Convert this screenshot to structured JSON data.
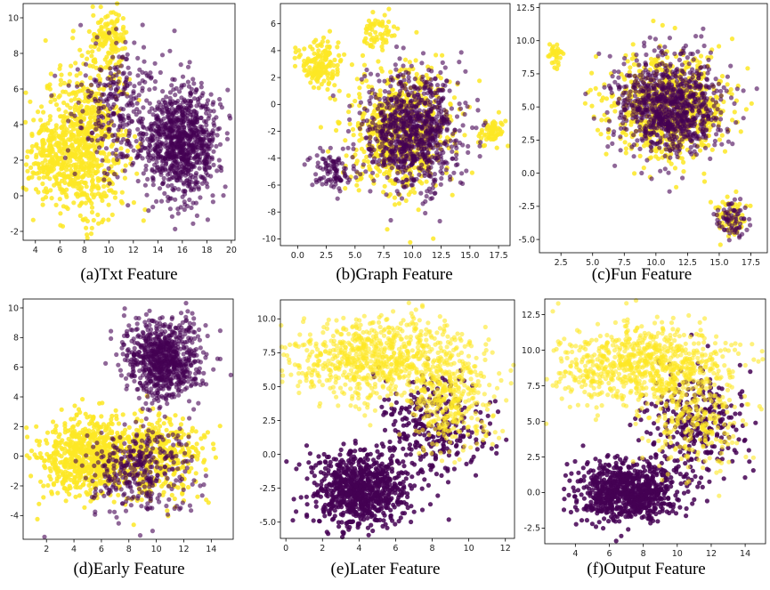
{
  "colors": {
    "class_a": "#fde725",
    "class_b": "#440154"
  },
  "chart_data": [
    {
      "type": "scatter",
      "caption": "(a)Txt Feature",
      "xticks": [
        4,
        6,
        8,
        10,
        12,
        14,
        16,
        18,
        20
      ],
      "yticks": [
        -2,
        0,
        2,
        4,
        6,
        8,
        10
      ],
      "xlim": [
        3,
        20.3
      ],
      "ylim": [
        -2.5,
        10.8
      ],
      "series": [
        {
          "color": "#fde725",
          "clusters": [
            {
              "cx": 8,
              "cy": 3,
              "sx": 2.2,
              "sy": 2.8,
              "n": 700
            },
            {
              "cx": 10,
              "cy": 8.5,
              "sx": 1.0,
              "sy": 1.3,
              "n": 150
            },
            {
              "cx": 5,
              "cy": 2,
              "sx": 1.2,
              "sy": 1.5,
              "n": 150
            }
          ]
        },
        {
          "color": "#440154",
          "clusters": [
            {
              "cx": 16,
              "cy": 3,
              "sx": 2.0,
              "sy": 2.0,
              "n": 900
            },
            {
              "cx": 11,
              "cy": 5,
              "sx": 2.5,
              "sy": 2.5,
              "n": 300
            }
          ]
        }
      ]
    },
    {
      "type": "scatter",
      "caption": "(b)Graph Feature",
      "xticks": [
        0.0,
        2.5,
        5.0,
        7.5,
        10.0,
        12.5,
        15.0,
        17.5
      ],
      "yticks": [
        -10,
        -8,
        -6,
        -4,
        -2,
        0,
        2,
        4,
        6
      ],
      "xlim": [
        -1.5,
        18.5
      ],
      "ylim": [
        -10.5,
        7.5
      ],
      "series": [
        {
          "color": "#fde725",
          "clusters": [
            {
              "cx": 9,
              "cy": -2,
              "sx": 3.0,
              "sy": 3.0,
              "n": 700
            },
            {
              "cx": 2,
              "cy": 3,
              "sx": 1.2,
              "sy": 1.2,
              "n": 150
            },
            {
              "cx": 7,
              "cy": 5.5,
              "sx": 1.0,
              "sy": 0.8,
              "n": 60
            },
            {
              "cx": 17,
              "cy": -2,
              "sx": 0.7,
              "sy": 0.6,
              "n": 60
            }
          ]
        },
        {
          "color": "#440154",
          "clusters": [
            {
              "cx": 10,
              "cy": -2,
              "sx": 2.8,
              "sy": 3.0,
              "n": 900
            },
            {
              "cx": 3,
              "cy": -5,
              "sx": 1.2,
              "sy": 1.0,
              "n": 100
            }
          ]
        }
      ]
    },
    {
      "type": "scatter",
      "caption": "(c)Fun Feature",
      "xticks": [
        2.5,
        5.0,
        7.5,
        10.0,
        12.5,
        15.0,
        17.5
      ],
      "yticks": [
        -5.0,
        -2.5,
        0.0,
        2.5,
        5.0,
        7.5,
        10.0,
        12.5
      ],
      "xlim": [
        0.8,
        18.8
      ],
      "ylim": [
        -6,
        12.8
      ],
      "series": [
        {
          "color": "#fde725",
          "clusters": [
            {
              "cx": 11,
              "cy": 5,
              "sx": 3.0,
              "sy": 2.5,
              "n": 800
            },
            {
              "cx": 16,
              "cy": -3.5,
              "sx": 0.8,
              "sy": 1.0,
              "n": 80
            },
            {
              "cx": 2,
              "cy": 9,
              "sx": 0.4,
              "sy": 0.6,
              "n": 30
            }
          ]
        },
        {
          "color": "#440154",
          "clusters": [
            {
              "cx": 11,
              "cy": 5,
              "sx": 2.8,
              "sy": 2.5,
              "n": 900
            },
            {
              "cx": 16,
              "cy": -3.5,
              "sx": 0.8,
              "sy": 1.0,
              "n": 70
            }
          ]
        }
      ]
    },
    {
      "type": "scatter",
      "caption": "(d)Early Feature",
      "xticks": [
        2,
        4,
        6,
        8,
        10,
        12,
        14
      ],
      "yticks": [
        -4,
        -2,
        0,
        2,
        4,
        6,
        8,
        10
      ],
      "xlim": [
        0.3,
        15.6
      ],
      "ylim": [
        -5.6,
        10.6
      ],
      "series": [
        {
          "color": "#fde725",
          "clusters": [
            {
              "cx": 5,
              "cy": 0,
              "sx": 2.5,
              "sy": 1.8,
              "n": 700
            },
            {
              "cx": 10,
              "cy": 0,
              "sx": 2.5,
              "sy": 2.0,
              "n": 400
            }
          ]
        },
        {
          "color": "#440154",
          "clusters": [
            {
              "cx": 10.5,
              "cy": 6.5,
              "sx": 1.8,
              "sy": 1.8,
              "n": 800
            },
            {
              "cx": 9,
              "cy": -1,
              "sx": 2.5,
              "sy": 2.0,
              "n": 350
            }
          ]
        }
      ]
    },
    {
      "type": "scatter",
      "caption": "(e)Later Feature",
      "xticks": [
        0,
        2,
        4,
        6,
        8,
        10,
        12
      ],
      "yticks": [
        -5.0,
        -2.5,
        0.0,
        2.5,
        5.0,
        7.5,
        10.0
      ],
      "xlim": [
        -0.3,
        12.5
      ],
      "ylim": [
        -6.2,
        11.4
      ],
      "series": [
        {
          "color": "#440154",
          "clusters": [
            {
              "cx": 4,
              "cy": -2.5,
              "sx": 1.7,
              "sy": 1.8,
              "n": 800
            },
            {
              "cx": 8,
              "cy": 2,
              "sx": 2.0,
              "sy": 2.5,
              "n": 300
            }
          ]
        },
        {
          "color": "#fde725",
          "clusters": [
            {
              "cx": 5,
              "cy": 7,
              "sx": 3.5,
              "sy": 2.0,
              "n": 800
            },
            {
              "cx": 9,
              "cy": 4,
              "sx": 1.5,
              "sy": 2.5,
              "n": 300
            }
          ]
        }
      ]
    },
    {
      "type": "scatter",
      "caption": "(f)Output Feature",
      "xticks": [
        4,
        6,
        8,
        10,
        12,
        14
      ],
      "yticks": [
        -2.5,
        0.0,
        2.5,
        5.0,
        7.5,
        10.0,
        12.5
      ],
      "xlim": [
        2.2,
        15.2
      ],
      "ylim": [
        -3.6,
        13.6
      ],
      "series": [
        {
          "color": "#440154",
          "clusters": [
            {
              "cx": 7,
              "cy": 0,
              "sx": 2.0,
              "sy": 1.4,
              "n": 800
            },
            {
              "cx": 11,
              "cy": 5,
              "sx": 2.0,
              "sy": 2.5,
              "n": 300
            }
          ]
        },
        {
          "color": "#fde725",
          "clusters": [
            {
              "cx": 8,
              "cy": 9,
              "sx": 3.5,
              "sy": 1.8,
              "n": 800
            },
            {
              "cx": 11,
              "cy": 5,
              "sx": 2.0,
              "sy": 2.5,
              "n": 250
            }
          ]
        }
      ]
    }
  ]
}
